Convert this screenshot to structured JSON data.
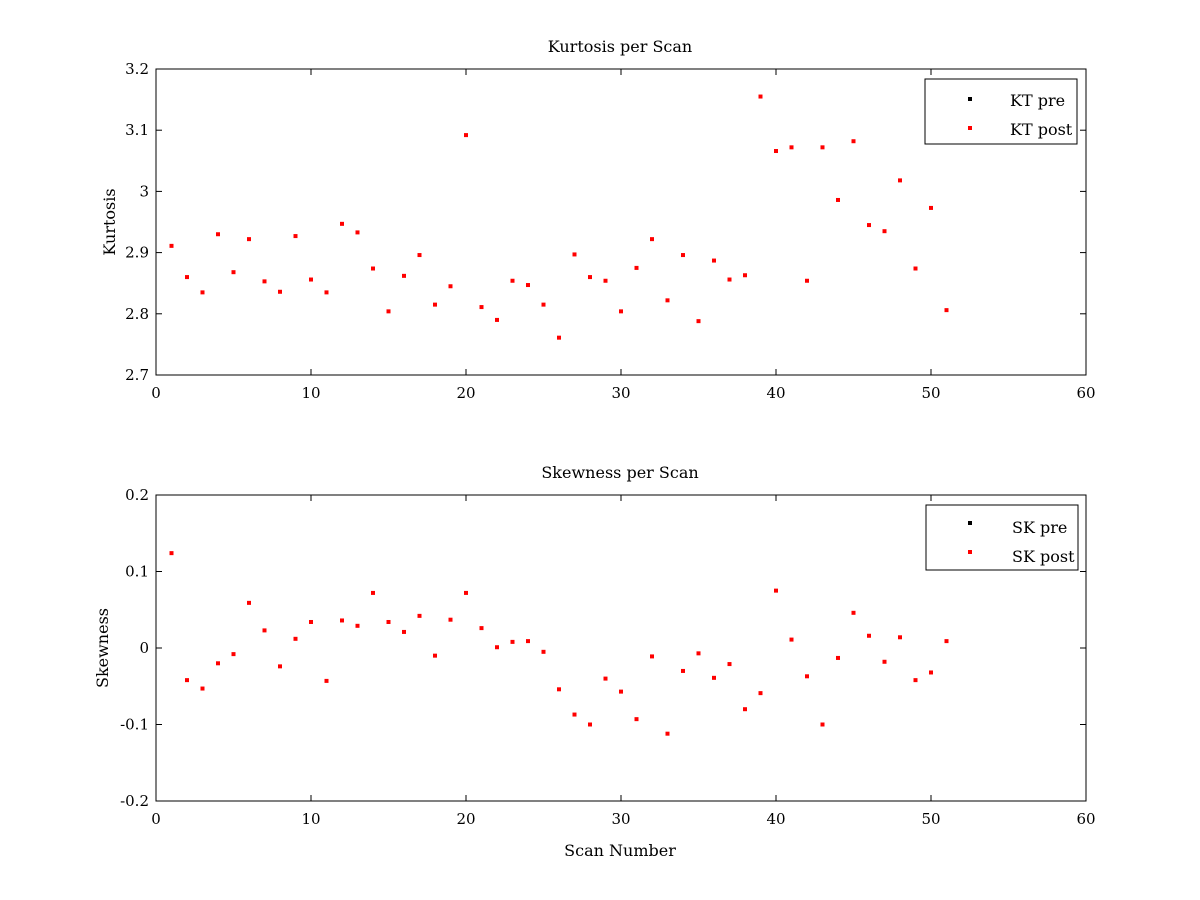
{
  "figure": {
    "background": "#ffffff"
  },
  "chart_data": [
    {
      "type": "scatter",
      "title": "Kurtosis per Scan",
      "xlabel": "",
      "ylabel": "Kurtosis",
      "xlim": [
        0,
        60
      ],
      "ylim": [
        2.7,
        3.2
      ],
      "xticks": [
        "0",
        "10",
        "20",
        "30",
        "40",
        "50",
        "60"
      ],
      "yticks": [
        "2.7",
        "2.8",
        "2.9",
        "3",
        "3.1",
        "3.2"
      ],
      "grid": false,
      "legend_position": "top-right",
      "series": [
        {
          "name": "KT pre",
          "color": "#000000",
          "x": [],
          "y": []
        },
        {
          "name": "KT post",
          "color": "#ff0000",
          "x": [
            1,
            2,
            3,
            4,
            5,
            6,
            7,
            8,
            9,
            10,
            11,
            12,
            13,
            14,
            15,
            16,
            17,
            18,
            19,
            20,
            21,
            22,
            23,
            24,
            25,
            26,
            27,
            28,
            29,
            30,
            31,
            32,
            33,
            34,
            35,
            36,
            37,
            38,
            39,
            40,
            41,
            42,
            43,
            44,
            45,
            46,
            47,
            48,
            49,
            50,
            51
          ],
          "y": [
            2.911,
            2.86,
            2.835,
            2.93,
            2.868,
            2.922,
            2.853,
            2.836,
            2.927,
            2.856,
            2.835,
            2.947,
            2.933,
            2.874,
            2.804,
            2.862,
            2.896,
            2.815,
            2.845,
            3.092,
            2.811,
            2.79,
            2.854,
            2.847,
            2.815,
            2.761,
            2.897,
            2.86,
            2.854,
            2.804,
            2.875,
            2.922,
            2.822,
            2.896,
            2.788,
            2.887,
            2.856,
            2.863,
            3.155,
            3.066,
            3.072,
            2.854,
            3.072,
            2.986,
            3.082,
            2.945,
            2.935,
            3.018,
            2.874,
            2.973,
            2.806
          ]
        }
      ]
    },
    {
      "type": "scatter",
      "title": "Skewness per Scan",
      "xlabel": "Scan Number",
      "ylabel": "Skewness",
      "xlim": [
        0,
        60
      ],
      "ylim": [
        -0.2,
        0.2
      ],
      "xticks": [
        "0",
        "10",
        "20",
        "30",
        "40",
        "50",
        "60"
      ],
      "yticks": [
        "-0.2",
        "-0.1",
        "0",
        "0.1",
        "0.2"
      ],
      "grid": false,
      "legend_position": "top-right",
      "series": [
        {
          "name": "SK pre",
          "color": "#000000",
          "x": [],
          "y": []
        },
        {
          "name": "SK post",
          "color": "#ff0000",
          "x": [
            1,
            2,
            3,
            4,
            5,
            6,
            7,
            8,
            9,
            10,
            11,
            12,
            13,
            14,
            15,
            16,
            17,
            18,
            19,
            20,
            21,
            22,
            23,
            24,
            25,
            26,
            27,
            28,
            29,
            30,
            31,
            32,
            33,
            34,
            35,
            36,
            37,
            38,
            39,
            40,
            41,
            42,
            43,
            44,
            45,
            46,
            47,
            48,
            49,
            50,
            51
          ],
          "y": [
            0.124,
            -0.042,
            -0.053,
            -0.02,
            -0.008,
            0.059,
            0.023,
            -0.024,
            0.012,
            0.034,
            -0.043,
            0.036,
            0.029,
            0.072,
            0.034,
            0.021,
            0.042,
            -0.01,
            0.037,
            0.072,
            0.026,
            0.001,
            0.008,
            0.009,
            -0.005,
            -0.054,
            -0.087,
            -0.1,
            -0.04,
            -0.057,
            -0.093,
            -0.011,
            -0.112,
            -0.03,
            -0.007,
            -0.039,
            -0.021,
            -0.08,
            -0.059,
            0.075,
            0.011,
            -0.037,
            -0.1,
            -0.013,
            0.046,
            0.016,
            -0.018,
            0.014,
            -0.042,
            -0.032,
            0.009
          ]
        }
      ]
    }
  ]
}
